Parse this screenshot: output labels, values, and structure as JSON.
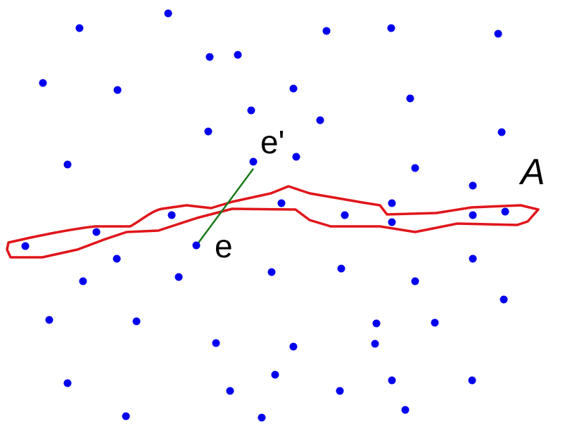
{
  "labels": {
    "e_prime": "e'",
    "e": "e",
    "region": "A"
  }
}
